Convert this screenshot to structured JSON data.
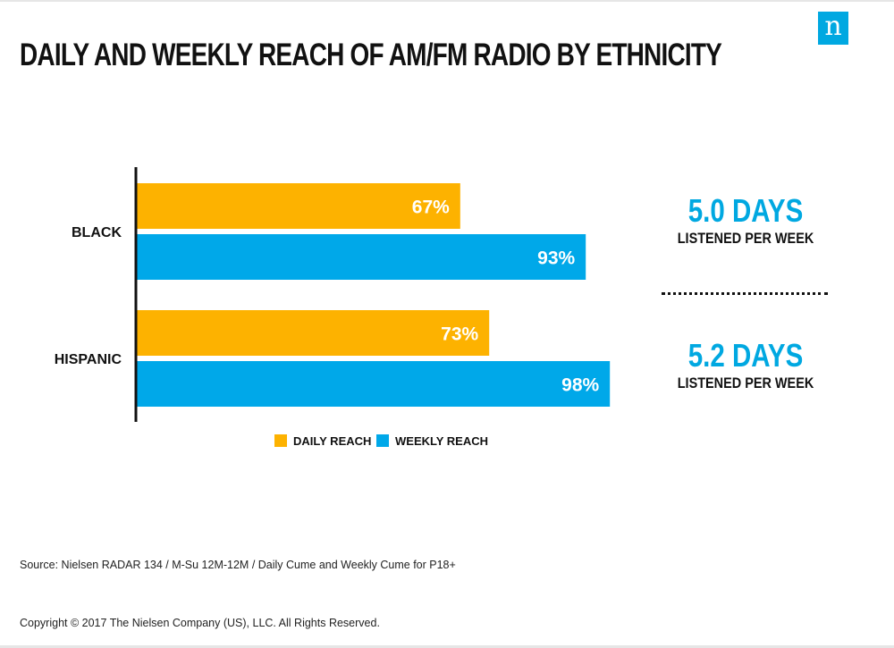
{
  "logo": {
    "glyph": "n",
    "color": "#00a8e1"
  },
  "title": "DAILY AND WEEKLY REACH OF AM/FM RADIO BY ETHNICITY",
  "chart_data": {
    "type": "bar",
    "orientation": "horizontal",
    "categories": [
      "BLACK",
      "HISPANIC"
    ],
    "series": [
      {
        "name": "DAILY REACH",
        "values": [
          67,
          73
        ],
        "labels": [
          "67%",
          "73%"
        ],
        "color": "#fdb200"
      },
      {
        "name": "WEEKLY REACH",
        "values": [
          93,
          98
        ],
        "labels": [
          "93%",
          "98%"
        ],
        "color": "#00a8e9"
      }
    ],
    "xlim": [
      0,
      100
    ],
    "grid": false,
    "legend": "bottom"
  },
  "stats": [
    {
      "days": "5.0 DAYS",
      "caption": "LISTENED PER WEEK"
    },
    {
      "days": "5.2 DAYS",
      "caption": "LISTENED PER WEEK"
    }
  ],
  "source": "Source: Nielsen RADAR 134 / M-Su 12M-12M / Daily Cume and Weekly Cume for P18+",
  "copyright": "Copyright © 2017 The Nielsen Company (US), LLC. All Rights Reserved."
}
